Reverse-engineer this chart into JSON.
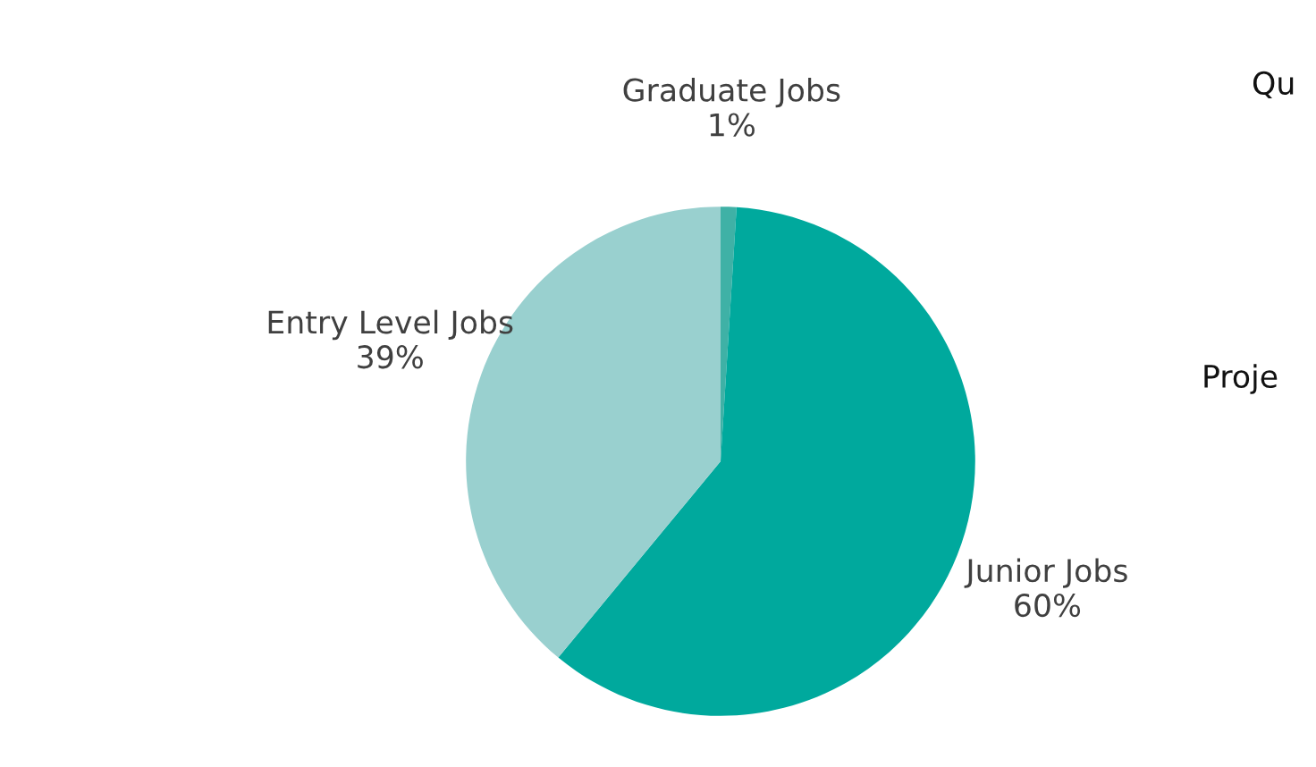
{
  "chart_data": {
    "type": "pie",
    "categories": [
      "Graduate Jobs",
      "Junior Jobs",
      "Entry Level Jobs"
    ],
    "values": [
      1,
      60,
      39
    ],
    "value_labels": [
      "1%",
      "60%",
      "39%"
    ],
    "colors": [
      "#3fb1a6",
      "#00a99d",
      "#99d0cf"
    ],
    "annotations": [
      "Qu",
      "Proje"
    ]
  }
}
